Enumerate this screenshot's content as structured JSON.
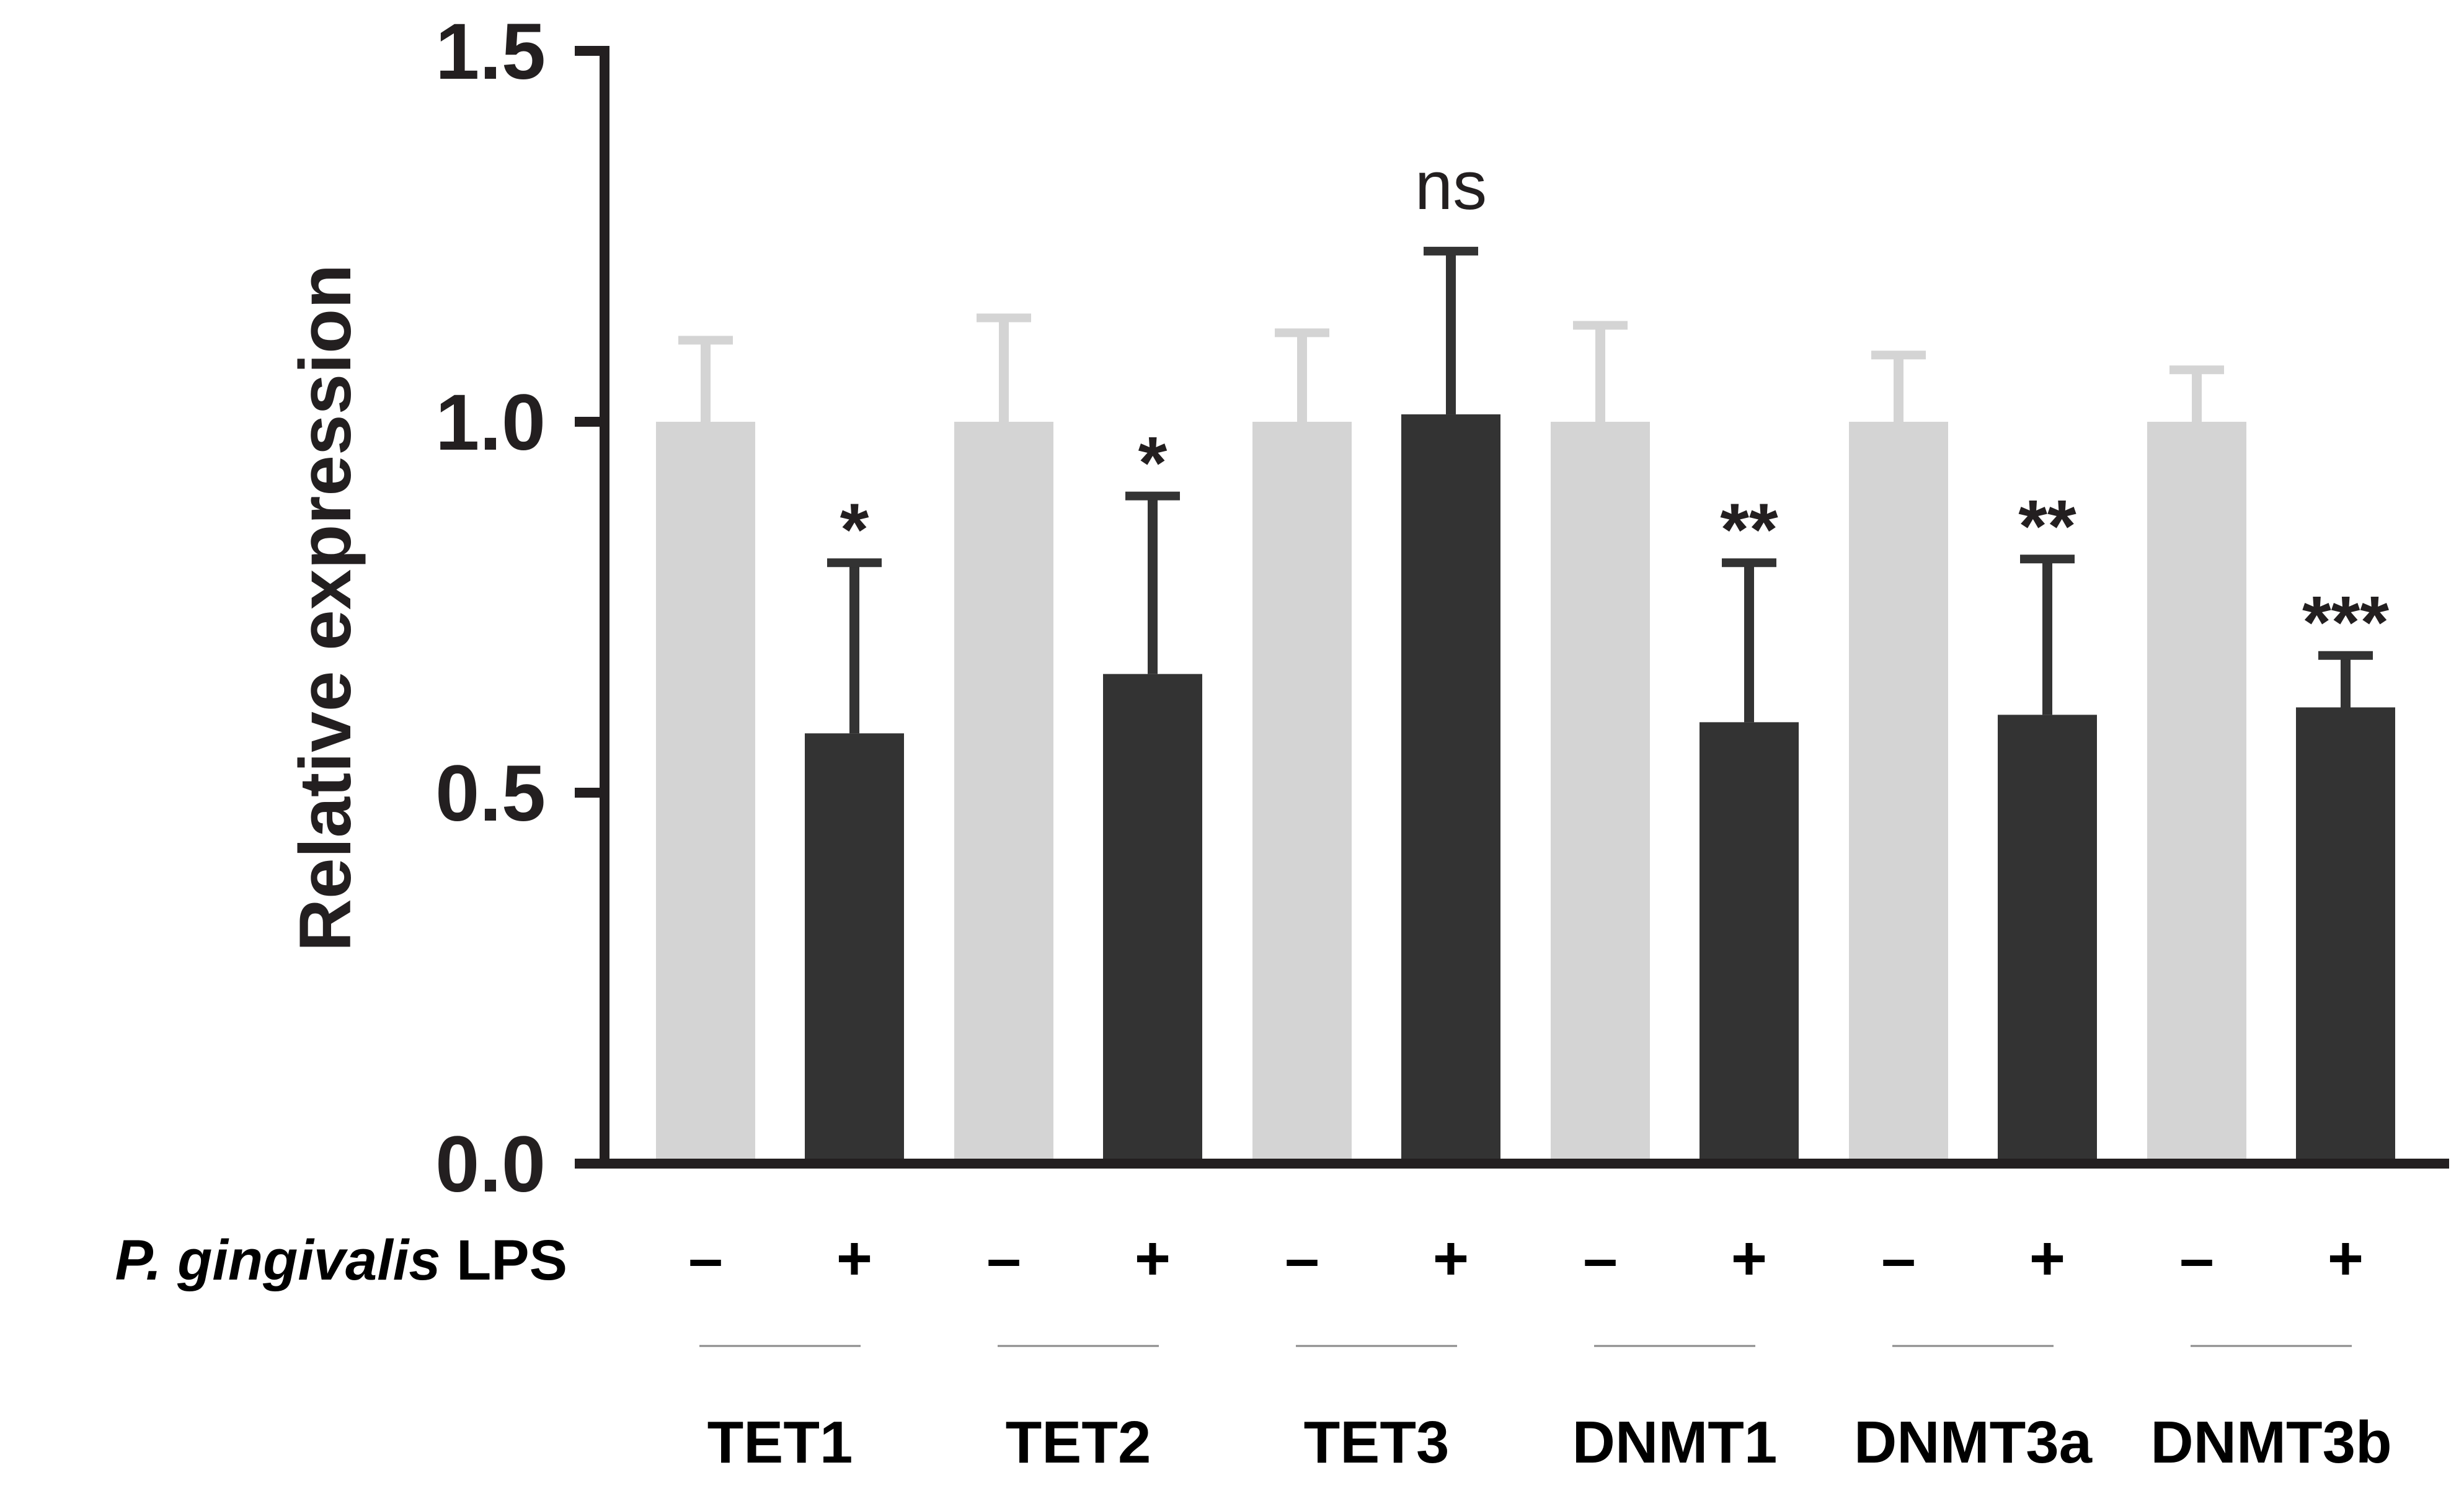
{
  "chart_data": {
    "type": "bar",
    "ylabel": "Relative expression",
    "ylim": [
      0,
      1.5
    ],
    "yticks": [
      0.0,
      0.5,
      1.0,
      1.5
    ],
    "ytick_labels": [
      "0.0",
      "0.5",
      "1.0",
      "1.5"
    ],
    "grid": false,
    "condition_label_prefix": "P. gingivalis",
    "condition_label_suffix": "LPS",
    "condition_signs": [
      "–",
      "+"
    ],
    "categories": [
      "TET1",
      "TET2",
      "TET3",
      "DNMT1",
      "DNMT3a",
      "DNMT3b"
    ],
    "series": [
      {
        "name": "–",
        "color": "#d4d4d4",
        "values": [
          1.0,
          1.0,
          1.0,
          1.0,
          1.0,
          1.0
        ],
        "errors": [
          0.11,
          0.14,
          0.12,
          0.13,
          0.09,
          0.07
        ]
      },
      {
        "name": "+",
        "color": "#333333",
        "values": [
          0.58,
          0.66,
          1.01,
          0.595,
          0.605,
          0.615
        ],
        "errors": [
          0.23,
          0.24,
          0.22,
          0.215,
          0.21,
          0.07
        ]
      }
    ],
    "significance": [
      "*",
      "*",
      "ns",
      "**",
      "**",
      "***"
    ]
  }
}
